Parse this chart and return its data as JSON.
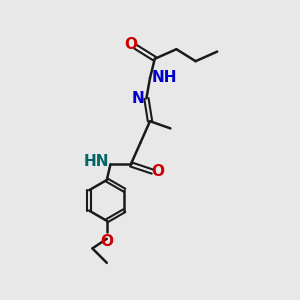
{
  "bg_color": "#e8e8e8",
  "bond_color": "#1a1a1a",
  "N_color": "#0000cc",
  "O_color": "#cc0000",
  "NH_color": "#006666",
  "font_size": 10,
  "xlim": [
    0,
    10
  ],
  "ylim": [
    0,
    12
  ],
  "figsize": [
    3.0,
    3.0
  ],
  "dpi": 100
}
